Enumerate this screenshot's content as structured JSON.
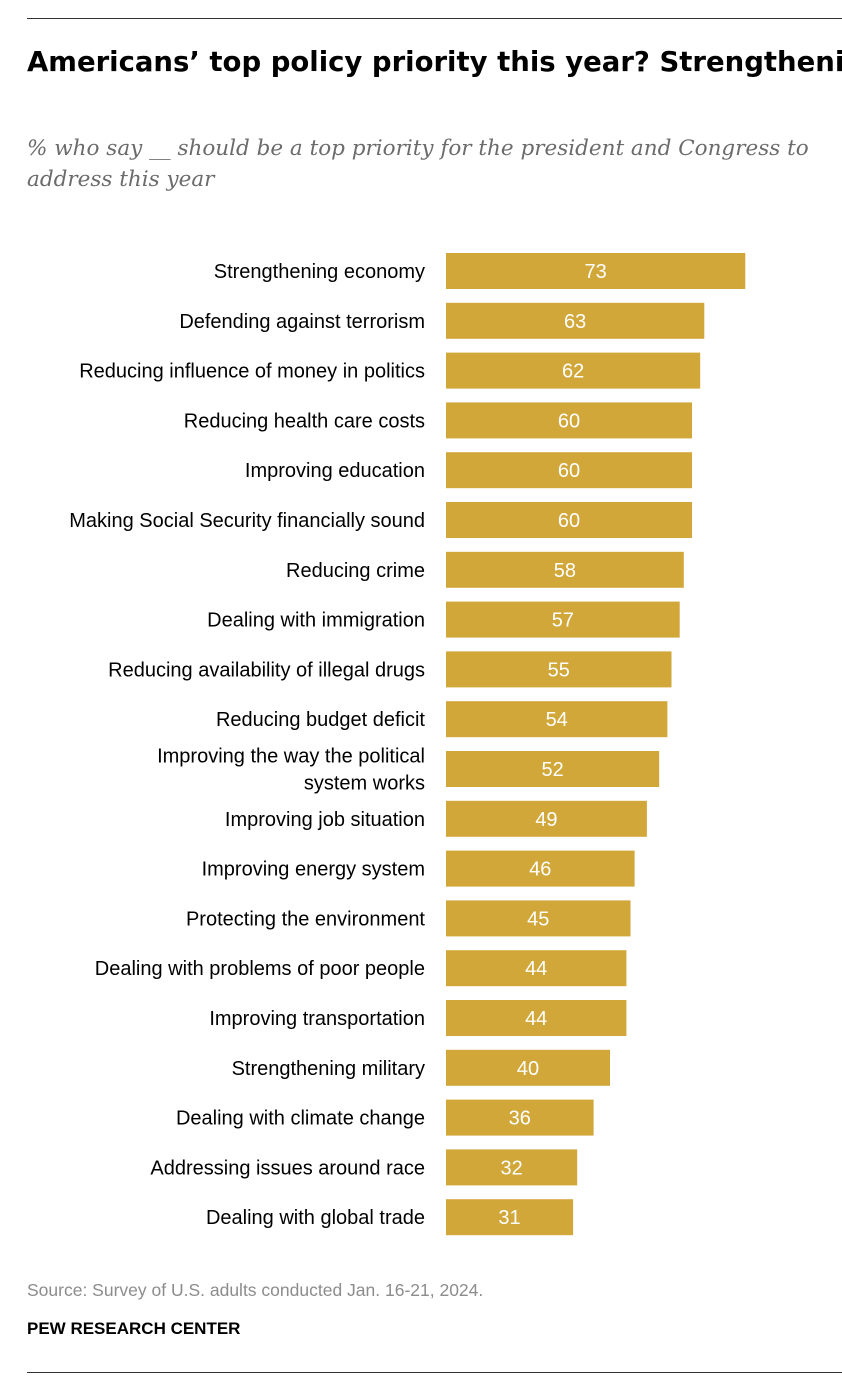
{
  "title": "Americans’ top policy priority this year? Strengthening the economy",
  "subtitle": "% who say __ should be a top priority for the president and Congress to address this year",
  "source": "Source: Survey of U.S. adults conducted Jan. 16-21, 2024.",
  "organization": "PEW RESEARCH CENTER",
  "colors": {
    "bar": "#d2a73a",
    "bar_label": "#ffffff",
    "category_label": "#000000"
  },
  "chart_data": {
    "type": "bar",
    "orientation": "horizontal",
    "categories": [
      "Strengthening economy",
      "Defending against terrorism",
      "Reducing influence of money in politics",
      "Reducing health care costs",
      "Improving education",
      "Making Social Security financially sound",
      "Reducing crime",
      "Dealing with immigration",
      "Reducing availability of illegal drugs",
      "Reducing budget deficit",
      "Improving the way the political system works",
      "Improving job situation",
      "Improving energy system",
      "Protecting the environment",
      "Dealing with problems of poor people",
      "Improving transportation",
      "Strengthening military",
      "Dealing with climate change",
      "Addressing issues around race",
      "Dealing with global trade"
    ],
    "values": [
      73,
      63,
      62,
      60,
      60,
      60,
      58,
      57,
      55,
      54,
      52,
      49,
      46,
      45,
      44,
      44,
      40,
      36,
      32,
      31
    ],
    "data_labels": true,
    "xlim": [
      0,
      100
    ],
    "grid": false
  }
}
